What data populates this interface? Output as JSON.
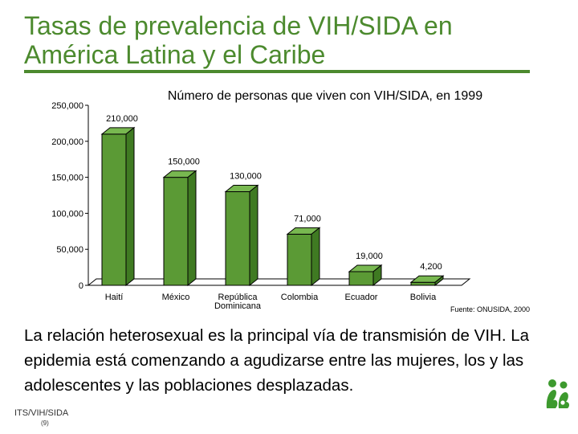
{
  "slide": {
    "title_line1": "Tasas de prevalencia de VIH/SIDA en",
    "title_line2": "América Latina y el Caribe",
    "body_text": "La relación heterosexual es la principal vía de transmisión de VIH. La epidemia está comenzando a agudizarse entre las mujeres, los y las adolescentes y las poblaciones desplazadas.",
    "footer_label": "ITS/VIH/SIDA",
    "footer_page": "(9)",
    "logo_icon": "green-figures-logo-icon",
    "accent_color": "#4c8a2e"
  },
  "chart_data": {
    "type": "bar",
    "title": "Número de personas que viven con VIH/SIDA, en 1999",
    "categories": [
      "Haití",
      "México",
      "República Dominicana",
      "Colombia",
      "Ecuador",
      "Bolivia"
    ],
    "category_lines": [
      [
        "Haití"
      ],
      [
        "México"
      ],
      [
        "República",
        "Dominicana"
      ],
      [
        "Colombia"
      ],
      [
        "Ecuador"
      ],
      [
        "Bolivia"
      ]
    ],
    "values": [
      210000,
      150000,
      130000,
      71000,
      19000,
      4200
    ],
    "data_labels": [
      "210,000",
      "150,000",
      "130,000",
      "71,000",
      "19,000",
      "4,200"
    ],
    "ylim": [
      0,
      250000
    ],
    "yticks": [
      0,
      50000,
      100000,
      150000,
      200000,
      250000
    ],
    "ytick_labels": [
      "0",
      "50,000",
      "100,000",
      "150,000",
      "200,000",
      "250,000"
    ],
    "bar_color": "#5b9a35",
    "source": "Fuente: ONUSIDA, 2000",
    "grid": false,
    "legend": "none"
  }
}
